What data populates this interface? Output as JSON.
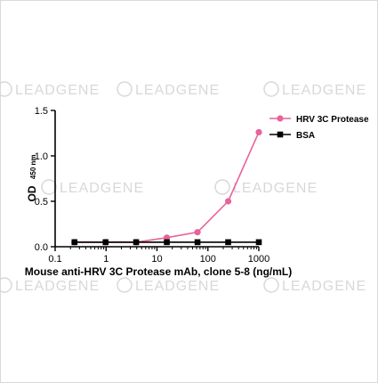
{
  "watermark": {
    "text": "LEADGENE"
  },
  "chart_data": {
    "type": "line",
    "xlabel": "Mouse anti-HRV 3C Protease mAb, clone 5-8 (ng/mL)",
    "ylabel_main": "OD",
    "ylabel_sub": "450 nm",
    "x_scale": "log",
    "xlim": [
      0.1,
      1000
    ],
    "ylim": [
      0.0,
      1.5
    ],
    "x_ticks": [
      0.1,
      1,
      10,
      100,
      1000
    ],
    "x_tick_labels": [
      "0.1",
      "1",
      "10",
      "100",
      "1000"
    ],
    "y_ticks": [
      0.0,
      0.5,
      1.0,
      1.5
    ],
    "y_tick_labels": [
      "0.0",
      "0.5",
      "1.0",
      "1.5"
    ],
    "grid": false,
    "legend_position": "top-right",
    "x": [
      0.24,
      0.98,
      3.9,
      15.6,
      62.5,
      250,
      1000
    ],
    "series": [
      {
        "name": "HRV 3C Protease",
        "color": "#e8639b",
        "marker": "circle",
        "values": [
          0.05,
          0.05,
          0.05,
          0.1,
          0.16,
          0.5,
          1.26
        ]
      },
      {
        "name": "BSA",
        "color": "#000000",
        "marker": "square",
        "values": [
          0.05,
          0.05,
          0.05,
          0.05,
          0.05,
          0.05,
          0.05
        ]
      }
    ]
  }
}
